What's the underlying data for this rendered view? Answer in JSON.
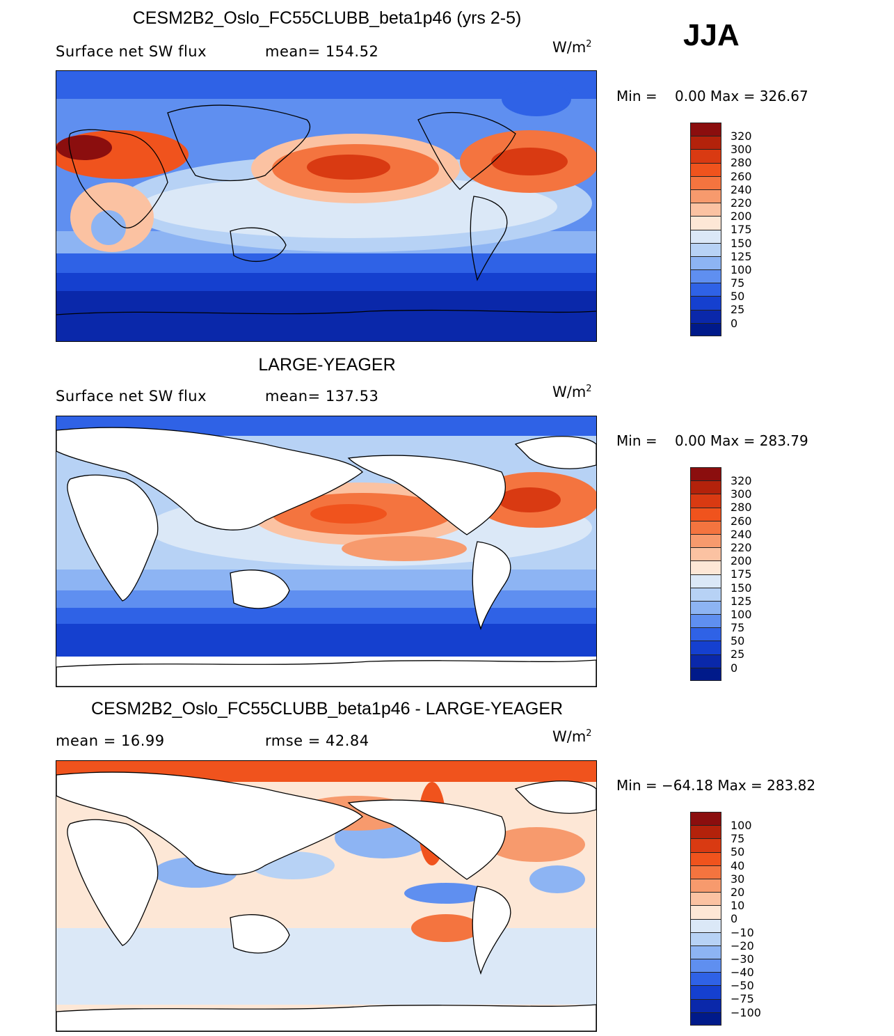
{
  "season": "JJA",
  "panels": [
    {
      "title": "CESM2B2_Oslo_FC55CLUBB_beta1p46 (yrs 2-5)",
      "left_label": "Surface net SW flux",
      "right_label": "mean= 154.52",
      "units": "W/m",
      "units_sup": "2",
      "minmax": "Min =    0.00 Max = 326.67",
      "colorbar_labels": [
        "320",
        "300",
        "280",
        "260",
        "240",
        "220",
        "200",
        "175",
        "150",
        "125",
        "100",
        "75",
        "50",
        "25",
        "0"
      ]
    },
    {
      "title": "LARGE-YEAGER",
      "left_label": "Surface net SW flux",
      "right_label": "mean= 137.53",
      "units": "W/m",
      "units_sup": "2",
      "minmax": "Min =    0.00 Max = 283.79",
      "colorbar_labels": [
        "320",
        "300",
        "280",
        "260",
        "240",
        "220",
        "200",
        "175",
        "150",
        "125",
        "100",
        "75",
        "50",
        "25",
        "0"
      ]
    },
    {
      "title": "CESM2B2_Oslo_FC55CLUBB_beta1p46 - LARGE-YEAGER",
      "left_label": "mean =   16.99",
      "right_label": "rmse =   42.84",
      "units": "W/m",
      "units_sup": "2",
      "minmax": "Min = −64.18 Max = 283.82",
      "colorbar_labels": [
        "100",
        "75",
        "50",
        "40",
        "30",
        "20",
        "10",
        "0",
        "−10",
        "−20",
        "−30",
        "−40",
        "−50",
        "−75",
        "−100"
      ]
    }
  ],
  "colors": {
    "abs": [
      "#8b0e0e",
      "#b3220b",
      "#d93a12",
      "#f0531d",
      "#f4743f",
      "#f79a6d",
      "#fbc2a2",
      "#fde7d6",
      "#dbe8f7",
      "#b7d2f5",
      "#8db4f3",
      "#5f8ff0",
      "#2f62e6",
      "#1540cf",
      "#0a28aa",
      "#001a8a"
    ],
    "diff": [
      "#8b0e0e",
      "#b3220b",
      "#d93a12",
      "#f0531d",
      "#f4743f",
      "#f79a6d",
      "#fbc2a2",
      "#fde7d6",
      "#dbe8f7",
      "#b7d2f5",
      "#8db4f3",
      "#5f8ff0",
      "#2f62e6",
      "#1540cf",
      "#0a28aa",
      "#001a8a"
    ],
    "land": "#ffffff",
    "coast": "#000000"
  }
}
